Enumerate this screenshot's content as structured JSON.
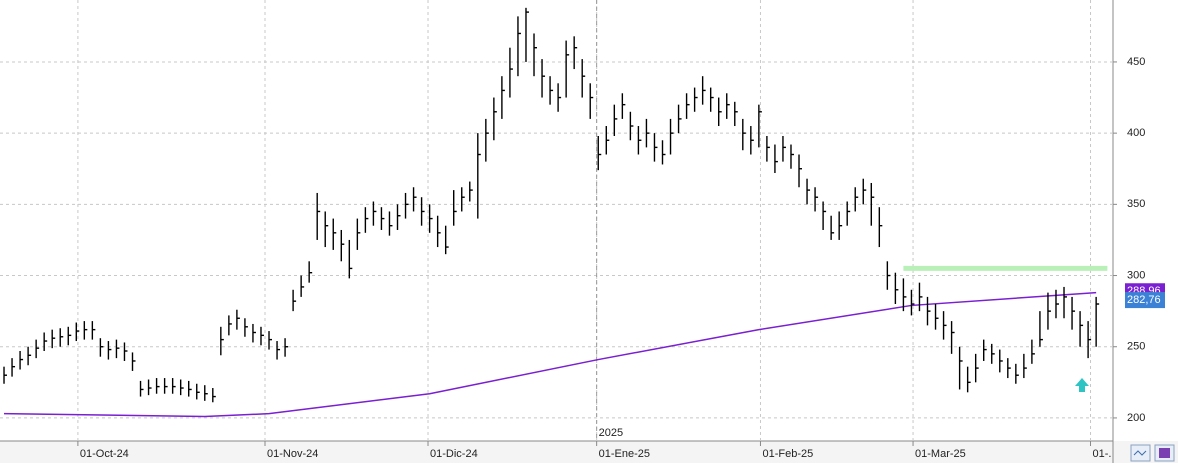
{
  "chart_data": {
    "type": "ohlc",
    "xlim": [
      -0.5,
      138.1
    ],
    "xticks": [
      {
        "value": 9.2,
        "label": "01-Oct-24"
      },
      {
        "value": 32.5,
        "label": "01-Nov-24"
      },
      {
        "value": 52.8,
        "label": "01-Dic-24"
      },
      {
        "value": 73.8,
        "label": "01-Ene-25"
      },
      {
        "value": 94.2,
        "label": "01-Feb-25"
      },
      {
        "value": 113.2,
        "label": "01-Mar-25"
      },
      {
        "value": 135.3,
        "label": "01-."
      }
    ],
    "year_marker": {
      "value": 73.8,
      "label": "2025"
    },
    "ylim": [
      183.8,
      493.5
    ],
    "yticks": [
      200,
      250,
      300,
      350,
      400,
      450
    ],
    "grid": true,
    "bar_color": "#000000",
    "high": [
      236,
      242,
      247,
      250,
      255,
      260,
      262,
      263,
      264,
      267,
      268,
      268,
      256,
      254,
      255,
      253,
      246,
      226,
      227,
      228,
      228,
      228,
      227,
      226,
      224,
      223,
      221,
      264,
      272,
      276,
      270,
      266,
      264,
      261,
      254,
      256,
      290,
      300,
      310,
      358,
      345,
      340,
      332,
      325,
      340,
      348,
      352,
      348,
      345,
      350,
      358,
      362,
      355,
      350,
      342,
      335,
      360,
      362,
      366,
      400,
      410,
      425,
      440,
      460,
      482,
      488,
      470,
      452,
      440,
      435,
      465,
      468,
      452,
      435,
      398,
      405,
      420,
      428,
      415,
      405,
      410,
      400,
      395,
      410,
      420,
      428,
      432,
      440,
      432,
      425,
      428,
      422,
      410,
      405,
      420,
      398,
      392,
      398,
      392,
      385,
      368,
      362,
      352,
      342,
      345,
      352,
      362,
      368,
      365,
      348,
      310,
      302,
      298,
      290,
      295,
      285,
      280,
      275,
      268,
      250,
      236,
      245,
      255,
      252,
      248,
      242,
      238,
      245,
      255,
      275,
      288,
      290,
      292,
      285,
      275,
      268,
      285
    ],
    "low": [
      224,
      229,
      234,
      237,
      242,
      247,
      249,
      250,
      251,
      254,
      255,
      255,
      243,
      241,
      242,
      240,
      233,
      215,
      216,
      217,
      217,
      217,
      216,
      215,
      213,
      212,
      211,
      244,
      258,
      262,
      257,
      253,
      251,
      248,
      241,
      243,
      275,
      285,
      295,
      325,
      320,
      318,
      310,
      298,
      318,
      330,
      335,
      332,
      328,
      332,
      340,
      345,
      335,
      330,
      320,
      315,
      335,
      345,
      352,
      340,
      380,
      395,
      410,
      425,
      440,
      450,
      440,
      425,
      420,
      415,
      425,
      445,
      425,
      410,
      374,
      385,
      398,
      410,
      395,
      385,
      390,
      380,
      378,
      385,
      400,
      410,
      415,
      420,
      415,
      405,
      410,
      405,
      388,
      385,
      390,
      380,
      372,
      380,
      375,
      362,
      350,
      345,
      332,
      325,
      325,
      335,
      345,
      350,
      335,
      320,
      290,
      280,
      275,
      272,
      275,
      265,
      262,
      255,
      245,
      220,
      218,
      225,
      240,
      238,
      232,
      228,
      224,
      228,
      238,
      250,
      262,
      270,
      270,
      262,
      250,
      242,
      250
    ],
    "close": [
      230,
      236,
      241,
      244,
      249,
      254,
      256,
      257,
      258,
      261,
      262,
      262,
      250,
      248,
      249,
      247,
      240,
      220,
      221,
      222,
      222,
      222,
      221,
      220,
      218,
      217,
      215,
      255,
      266,
      270,
      264,
      260,
      258,
      255,
      248,
      250,
      282,
      292,
      302,
      345,
      335,
      330,
      322,
      305,
      330,
      340,
      345,
      340,
      335,
      342,
      350,
      355,
      345,
      340,
      330,
      320,
      345,
      355,
      360,
      385,
      400,
      415,
      430,
      445,
      470,
      485,
      460,
      440,
      430,
      425,
      455,
      460,
      440,
      425,
      385,
      395,
      410,
      420,
      405,
      395,
      400,
      390,
      385,
      400,
      410,
      420,
      425,
      430,
      425,
      415,
      420,
      415,
      400,
      395,
      415,
      390,
      380,
      390,
      385,
      375,
      360,
      355,
      345,
      330,
      335,
      345,
      355,
      360,
      355,
      335,
      300,
      290,
      285,
      280,
      285,
      275,
      270,
      265,
      260,
      240,
      225,
      235,
      248,
      245,
      240,
      235,
      230,
      235,
      245,
      255,
      275,
      280,
      285,
      275,
      265,
      255,
      280
    ],
    "moving_average": {
      "color": "#7a1fd1",
      "x": [
        0,
        25,
        33,
        53,
        74,
        94,
        113,
        136
      ],
      "values": [
        203,
        201,
        203,
        217,
        241,
        262,
        279,
        288
      ]
    },
    "level_line": {
      "value": 305,
      "x": [
        112,
        137.4
      ],
      "color": "#b8f0b8"
    },
    "price_label": {
      "value": 282.76,
      "label": "282,76",
      "color": "#3b82d6"
    },
    "ma_label": {
      "value": 288.96,
      "label": "288,96",
      "color": "#7a1fd1"
    }
  }
}
